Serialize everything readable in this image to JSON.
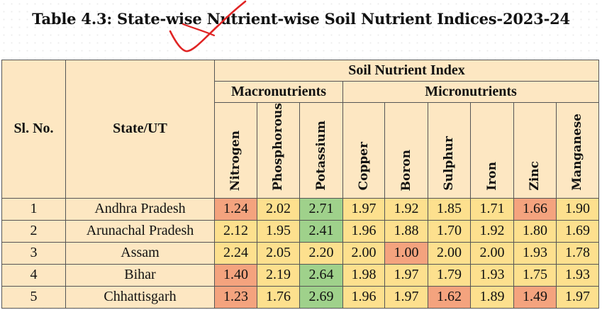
{
  "title": "Table 4.3: State-wise Nutrient-wise Soil Nutrient Indices-2023-24",
  "header": {
    "sl_no": "Sl. No.",
    "state": "State/UT",
    "index_group": "Soil Nutrient Index",
    "macro": "Macronutrients",
    "micro": "Micronutrients",
    "columns": [
      "Nitrogen",
      "Phosphorous",
      "Potassium",
      "Copper",
      "Boron",
      "Sulphur",
      "Iron",
      "Zinc",
      "Manganese"
    ]
  },
  "colors": {
    "low": "#f4a37e",
    "medium": "#fde08e",
    "high": "#9fd18b"
  },
  "rows": [
    {
      "sl": "1",
      "state": "Andhra Pradesh",
      "values": [
        "1.24",
        "2.02",
        "2.71",
        "1.97",
        "1.92",
        "1.85",
        "1.71",
        "1.66",
        "1.90"
      ],
      "levels": [
        "low",
        "medium",
        "high",
        "medium",
        "medium",
        "medium",
        "medium",
        "low",
        "medium"
      ]
    },
    {
      "sl": "2",
      "state": "Arunachal Pradesh",
      "values": [
        "2.12",
        "1.95",
        "2.41",
        "1.96",
        "1.88",
        "1.70",
        "1.92",
        "1.80",
        "1.69"
      ],
      "levels": [
        "medium",
        "medium",
        "high",
        "medium",
        "medium",
        "medium",
        "medium",
        "medium",
        "medium"
      ]
    },
    {
      "sl": "3",
      "state": "Assam",
      "values": [
        "2.24",
        "2.05",
        "2.20",
        "2.00",
        "1.00",
        "2.00",
        "2.00",
        "1.93",
        "1.78"
      ],
      "levels": [
        "medium",
        "medium",
        "medium",
        "medium",
        "low",
        "medium",
        "medium",
        "medium",
        "medium"
      ]
    },
    {
      "sl": "4",
      "state": "Bihar",
      "values": [
        "1.40",
        "2.19",
        "2.64",
        "1.98",
        "1.97",
        "1.79",
        "1.93",
        "1.75",
        "1.93"
      ],
      "levels": [
        "low",
        "medium",
        "high",
        "medium",
        "medium",
        "medium",
        "medium",
        "medium",
        "medium"
      ]
    },
    {
      "sl": "5",
      "state": "Chhattisgarh",
      "values": [
        "1.23",
        "1.76",
        "2.69",
        "1.96",
        "1.97",
        "1.62",
        "1.89",
        "1.49",
        "1.97"
      ],
      "levels": [
        "low",
        "medium",
        "high",
        "medium",
        "medium",
        "low",
        "medium",
        "low",
        "medium"
      ]
    }
  ]
}
